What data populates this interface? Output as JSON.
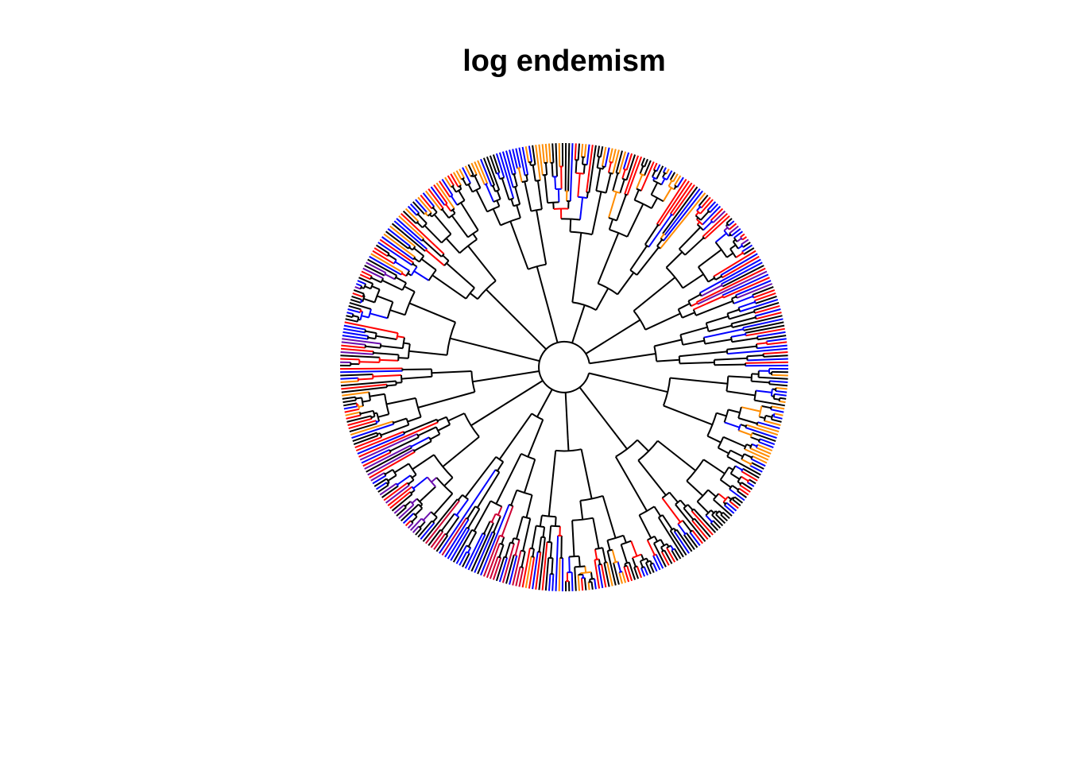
{
  "title": "log endemism",
  "palette": {
    "low": "#0000ff",
    "mid_low": "#6a0dad",
    "mid": "#cc0033",
    "high": "#ff0000",
    "max": "#ff8c00",
    "none": "#000000"
  },
  "tree": {
    "layout": "fan",
    "tip_count": 420,
    "clades": [
      {
        "start": 0.0,
        "end": 0.055,
        "color_mix": [
          "none",
          "low",
          "high"
        ]
      },
      {
        "start": 0.055,
        "end": 0.14,
        "color_mix": [
          "low",
          "none",
          "mid_low",
          "high"
        ]
      },
      {
        "start": 0.14,
        "end": 0.27,
        "color_mix": [
          "none",
          "low",
          "high",
          "max"
        ]
      },
      {
        "start": 0.27,
        "end": 0.33,
        "color_mix": [
          "none",
          "low",
          "max"
        ]
      },
      {
        "start": 0.33,
        "end": 0.42,
        "color_mix": [
          "low",
          "high",
          "max",
          "none"
        ]
      },
      {
        "start": 0.42,
        "end": 0.5,
        "color_mix": [
          "low",
          "none",
          "high",
          "mid_low"
        ]
      },
      {
        "start": 0.5,
        "end": 0.56,
        "color_mix": [
          "high",
          "max",
          "none",
          "low"
        ]
      },
      {
        "start": 0.56,
        "end": 0.64,
        "color_mix": [
          "low",
          "none",
          "mid_low",
          "high"
        ]
      },
      {
        "start": 0.64,
        "end": 0.72,
        "color_mix": [
          "none",
          "low",
          "mid"
        ]
      },
      {
        "start": 0.72,
        "end": 0.82,
        "color_mix": [
          "none",
          "max",
          "high",
          "low"
        ]
      },
      {
        "start": 0.82,
        "end": 0.92,
        "color_mix": [
          "none",
          "low",
          "high"
        ]
      },
      {
        "start": 0.92,
        "end": 1.0,
        "color_mix": [
          "none",
          "low",
          "max"
        ]
      }
    ]
  }
}
